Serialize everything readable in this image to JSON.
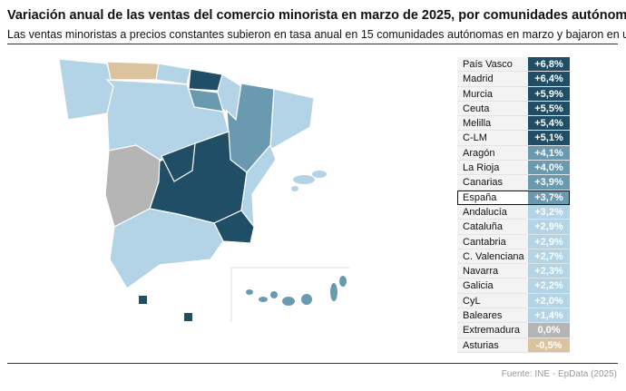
{
  "title": "Variación anual de las ventas del comercio minorista en marzo de 2025, por comunidades autónomas",
  "subtitle": "Las ventas minoristas a precios constantes subieron en tasa anual en 15 comunidades autónomas en marzo y bajaron en una",
  "source": "Fuente: INE - EpData (2025)",
  "colors": {
    "dark": "#1f4e66",
    "mid": "#6a9ab0",
    "light": "#b3d3e6",
    "neutral": "#b5b5b5",
    "negative": "#dcc3a0"
  },
  "chart_data": {
    "type": "table",
    "rows": [
      {
        "region": "País Vasco",
        "value": "+6,8%",
        "class": "dark"
      },
      {
        "region": "Madrid",
        "value": "+6,4%",
        "class": "dark"
      },
      {
        "region": "Murcia",
        "value": "+5,9%",
        "class": "dark"
      },
      {
        "region": "Ceuta",
        "value": "+5,5%",
        "class": "dark"
      },
      {
        "region": "Melilla",
        "value": "+5,4%",
        "class": "dark"
      },
      {
        "region": "C-LM",
        "value": "+5,1%",
        "class": "dark"
      },
      {
        "region": "Aragón",
        "value": "+4,1%",
        "class": "mid"
      },
      {
        "region": "La Rioja",
        "value": "+4,0%",
        "class": "mid"
      },
      {
        "region": "Canarias",
        "value": "+3,9%",
        "class": "mid"
      },
      {
        "region": "España",
        "value": "+3,7%",
        "class": "mid",
        "highlight": true
      },
      {
        "region": "Andalucía",
        "value": "+3,2%",
        "class": "light"
      },
      {
        "region": "Cataluña",
        "value": "+2,9%",
        "class": "light"
      },
      {
        "region": "Cantabria",
        "value": "+2,9%",
        "class": "light"
      },
      {
        "region": "C. Valenciana",
        "value": "+2,7%",
        "class": "light"
      },
      {
        "region": "Navarra",
        "value": "+2,3%",
        "class": "light"
      },
      {
        "region": "Galicia",
        "value": "+2,2%",
        "class": "light"
      },
      {
        "region": "CyL",
        "value": "+2,0%",
        "class": "light"
      },
      {
        "region": "Baleares",
        "value": "+1,4%",
        "class": "light"
      },
      {
        "region": "Extremadura",
        "value": "0,0%",
        "class": "neutral"
      },
      {
        "region": "Asturias",
        "value": "-0,5%",
        "class": "negative"
      }
    ]
  }
}
